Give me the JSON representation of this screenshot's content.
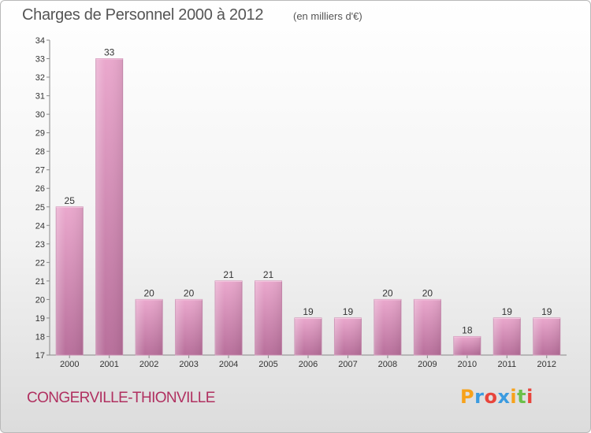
{
  "title": "Charges de Personnel 2000 à 2012",
  "subtitle": "(en milliers d'€)",
  "city": "CONGERVILLE-THIONVILLE",
  "logo": {
    "text": "Proxiti",
    "letters": [
      {
        "char": "P",
        "color": "#f7a21b"
      },
      {
        "char": "r",
        "color": "#3b9be0"
      },
      {
        "char": "o",
        "color": "#e8453c"
      },
      {
        "char": "x",
        "color": "#3b9be0"
      },
      {
        "char": "i",
        "color": "#f7a21b"
      },
      {
        "char": "t",
        "color": "#6cc04a"
      },
      {
        "char": "i",
        "color": "#e8453c"
      }
    ]
  },
  "colors": {
    "bar": "#d98cb8",
    "bar_light": "#e9a9cc",
    "bar_dark": "#b66e98",
    "city": "#b03060"
  },
  "chart_data": {
    "type": "bar",
    "categories": [
      "2000",
      "2001",
      "2002",
      "2003",
      "2004",
      "2005",
      "2006",
      "2007",
      "2008",
      "2009",
      "2010",
      "2011",
      "2012"
    ],
    "values": [
      25,
      33,
      20,
      20,
      21,
      21,
      19,
      19,
      20,
      20,
      18,
      19,
      19
    ],
    "title": "Charges de Personnel 2000 à 2012",
    "ylim": [
      17,
      34
    ],
    "yticks": [
      "17",
      "18",
      "19",
      "20",
      "21",
      "22",
      "23",
      "24",
      "25",
      "26",
      "27",
      "28",
      "29",
      "30",
      "31",
      "32",
      "33",
      "34"
    ],
    "grid": false,
    "legend": "none"
  }
}
